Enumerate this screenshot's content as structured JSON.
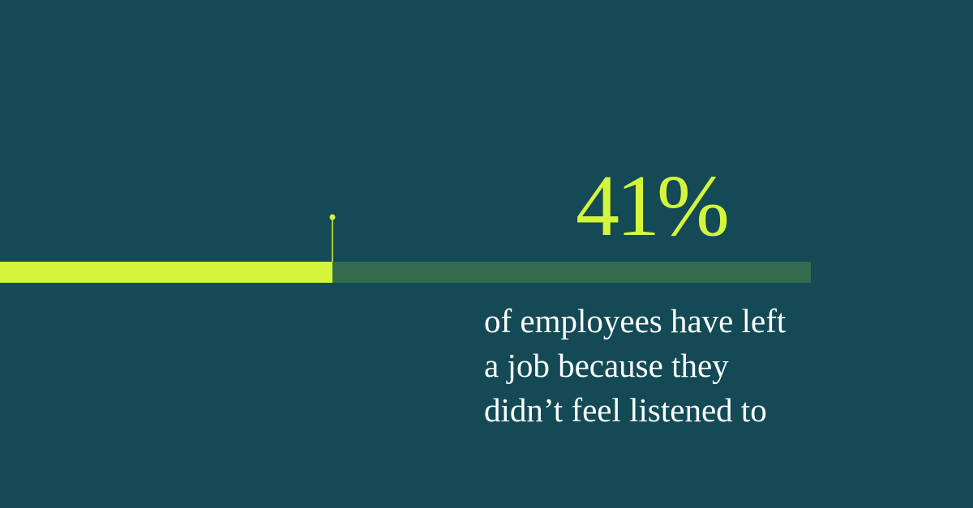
{
  "chart_data": {
    "type": "progress",
    "values": [
      41
    ],
    "value_labels": [
      "41%"
    ],
    "xlim": [
      0,
      100
    ],
    "color": "#d4f53c",
    "track_color": "#346b4e",
    "annotations": [
      "of employees have left",
      "a job because they",
      "didn’t feel listened to"
    ]
  }
}
